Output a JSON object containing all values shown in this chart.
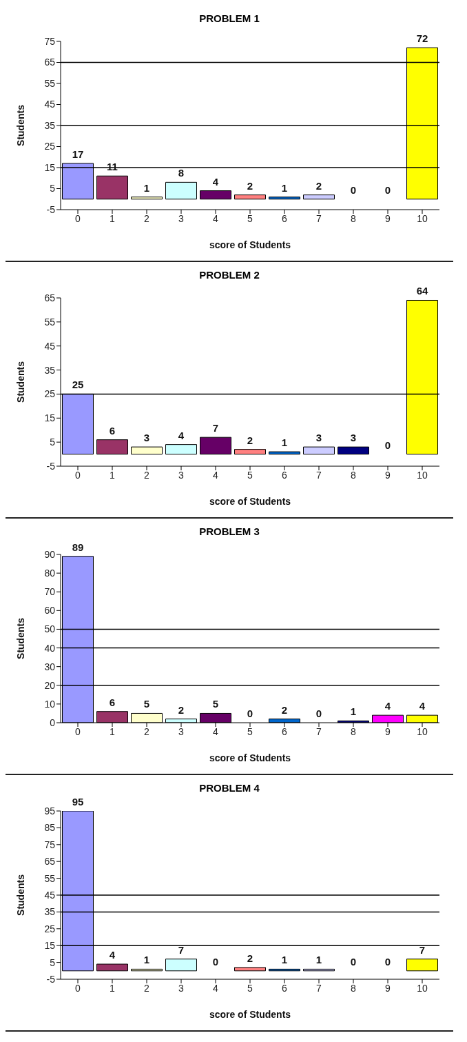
{
  "chart_data": [
    {
      "type": "bar",
      "title": "PROBLEM 1",
      "xlabel": "score of Students",
      "ylabel": "Students",
      "categories": [
        "0",
        "1",
        "2",
        "3",
        "4",
        "5",
        "6",
        "7",
        "8",
        "9",
        "10"
      ],
      "values": [
        17,
        11,
        1,
        8,
        4,
        2,
        1,
        2,
        0,
        0,
        72
      ],
      "colors": [
        "#9999ff",
        "#993366",
        "#ffffcc",
        "#ccffff",
        "#660066",
        "#ff8080",
        "#0066cc",
        "#ccccff",
        "#000080",
        "#ff00ff",
        "#ffff00"
      ],
      "ylim": [
        -5,
        75
      ],
      "yticks": [
        -5,
        5,
        15,
        25,
        35,
        45,
        55,
        65,
        75
      ],
      "data_labels": true,
      "grid": false,
      "legend": false,
      "ref_lines": [
        {
          "axis": "y",
          "value": 15
        },
        {
          "axis": "y",
          "value": 35
        },
        {
          "axis": "y",
          "value": 65
        }
      ]
    },
    {
      "type": "bar",
      "title": "PROBLEM 2",
      "xlabel": "score of Students",
      "ylabel": "Students",
      "categories": [
        "0",
        "1",
        "2",
        "3",
        "4",
        "5",
        "6",
        "7",
        "8",
        "9",
        "10"
      ],
      "values": [
        25,
        6,
        3,
        4,
        7,
        2,
        1,
        3,
        3,
        0,
        64
      ],
      "colors": [
        "#9999ff",
        "#993366",
        "#ffffcc",
        "#ccffff",
        "#660066",
        "#ff8080",
        "#0066cc",
        "#ccccff",
        "#000080",
        "#ff00ff",
        "#ffff00"
      ],
      "ylim": [
        -5,
        65
      ],
      "yticks": [
        -5,
        5,
        15,
        25,
        35,
        45,
        55,
        65
      ],
      "data_labels": true,
      "grid": false,
      "legend": false,
      "ref_lines": [
        {
          "axis": "y",
          "value": 25
        }
      ]
    },
    {
      "type": "bar",
      "title": "PROBLEM 3",
      "xlabel": "score of Students",
      "ylabel": "Students",
      "categories": [
        "0",
        "1",
        "2",
        "3",
        "4",
        "5",
        "6",
        "7",
        "8",
        "9",
        "10"
      ],
      "values": [
        89,
        6,
        5,
        2,
        5,
        0,
        2,
        0,
        1,
        4,
        4
      ],
      "colors": [
        "#9999ff",
        "#993366",
        "#ffffcc",
        "#ccffff",
        "#660066",
        "#ff8080",
        "#0066cc",
        "#ccccff",
        "#000080",
        "#ff00ff",
        "#ffff00"
      ],
      "ylim": [
        0,
        90
      ],
      "yticks": [
        0,
        10,
        20,
        30,
        40,
        50,
        60,
        70,
        80,
        90
      ],
      "data_labels": true,
      "grid": false,
      "legend": false,
      "ref_lines": [
        {
          "axis": "y",
          "value": 20
        },
        {
          "axis": "y",
          "value": 40
        },
        {
          "axis": "y",
          "value": 50
        }
      ]
    },
    {
      "type": "bar",
      "title": "PROBLEM 4",
      "xlabel": "score of Students",
      "ylabel": "Students",
      "categories": [
        "0",
        "1",
        "2",
        "3",
        "4",
        "5",
        "6",
        "7",
        "8",
        "9",
        "10"
      ],
      "values": [
        95,
        4,
        1,
        7,
        0,
        2,
        1,
        1,
        0,
        0,
        7
      ],
      "colors": [
        "#9999ff",
        "#993366",
        "#ffffcc",
        "#ccffff",
        "#660066",
        "#ff8080",
        "#0066cc",
        "#ccccff",
        "#000080",
        "#ff00ff",
        "#ffff00"
      ],
      "ylim": [
        -5,
        95
      ],
      "yticks": [
        -5,
        5,
        15,
        25,
        35,
        45,
        55,
        65,
        75,
        85,
        95
      ],
      "data_labels": true,
      "grid": false,
      "legend": false,
      "ref_lines": [
        {
          "axis": "y",
          "value": 15
        },
        {
          "axis": "y",
          "value": 35
        },
        {
          "axis": "y",
          "value": 45
        }
      ]
    }
  ]
}
